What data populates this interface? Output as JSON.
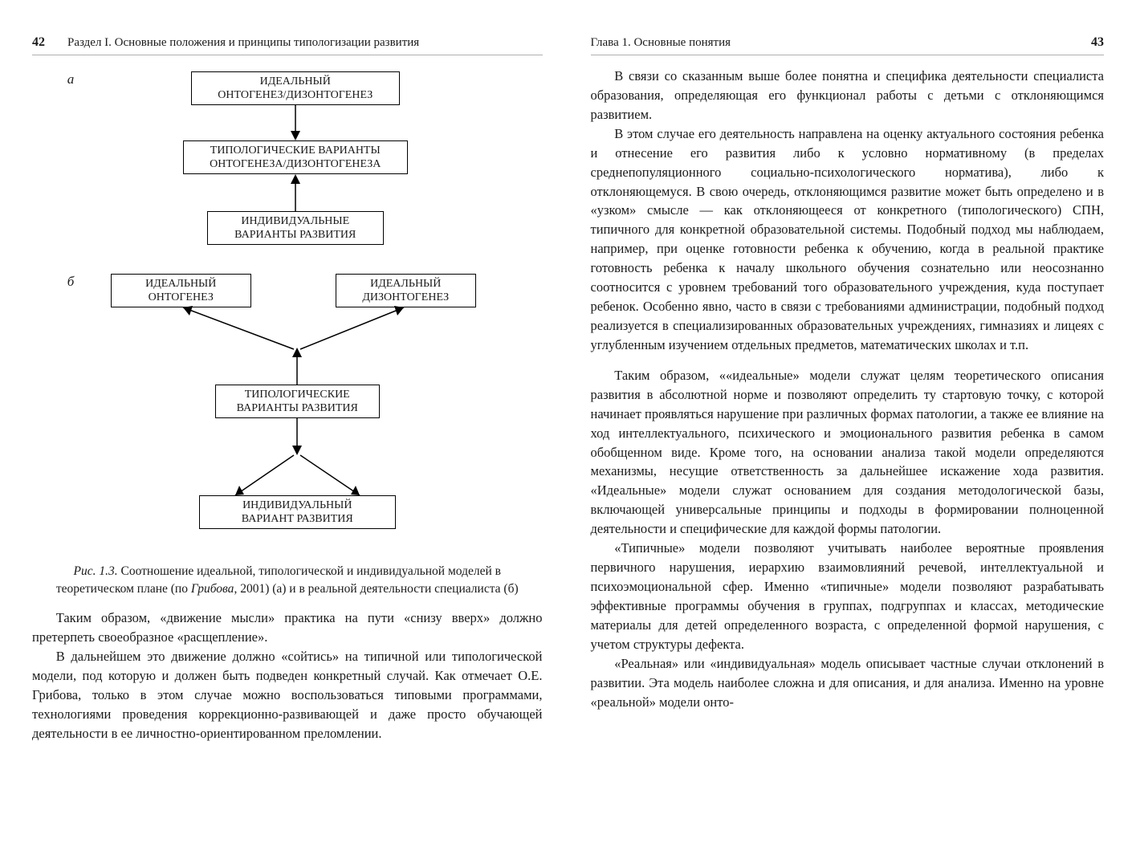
{
  "left": {
    "page_number": "42",
    "running_title": "Раздел I. Основные положения и принципы типологизации развития",
    "diagramA": {
      "label": "а",
      "box1": "ИДЕАЛЬНЫЙ\nОНТОГЕНЕЗ/ДИЗОНТОГЕНЕЗ",
      "box2": "ТИПОЛОГИЧЕСКИЕ ВАРИАНТЫ\nОНТОГЕНЕЗА/ДИЗОНТОГЕНЕЗА",
      "box3": "ИНДИВИДУАЛЬНЫЕ\nВАРИАНТЫ РАЗВИТИЯ"
    },
    "diagramB": {
      "label": "б",
      "top_left": "ИДЕАЛЬНЫЙ\nОНТОГЕНЕЗ",
      "top_right": "ИДЕАЛЬНЫЙ\nДИЗОНТОГЕНЕЗ",
      "mid": "ТИПОЛОГИЧЕСКИЕ\nВАРИАНТЫ РАЗВИТИЯ",
      "bottom": "ИНДИВИДУАЛЬНЫЙ\nВАРИАНТ РАЗВИТИЯ"
    },
    "caption_label": "Рис. 1.3.",
    "caption_body": " Соотношение идеальной, типологической и индивидуальной моделей в теоретическом плане (по ",
    "caption_src": "Грибова",
    "caption_tail": ", 2001) (а) и в реальной деятельности специалиста (б)",
    "p1": "Таким образом, «движение мысли» практика на пути «снизу вверх» должно претерпеть своеобразное «расщепление».",
    "p2": "В дальнейшем это движение должно «сойтись» на типичной или типологической модели, под которую и должен быть подведен конкретный случай. Как отмечает О.Е. Грибова, только в этом случае можно воспользоваться типовыми программами, технологиями проведения коррекционно-развивающей и даже просто обучающей деятельности в ее личностно-ориентированном преломлении."
  },
  "right": {
    "page_number": "43",
    "running_title": "Глава 1. Основные понятия",
    "p1": "В связи со сказанным выше более понятна и специфика деятельности специалиста образования, определяющая его функционал работы с детьми с отклоняющимся развитием.",
    "p2": "В этом случае его деятельность направлена на оценку актуального состояния ребенка и отнесение его развития либо к условно нормативному (в пределах среднепопуляционного социально-психологического норматива), либо к отклоняющемуся. В свою очередь, отклоняющимся развитие может быть определено и в «узком» смысле — как отклоняющееся от конкретного (типологического) СПН, типичного для конкретной образовательной системы. Подобный подход мы наблюдаем, например, при оценке готовности ребенка к обучению, когда в реальной практике готовность ребенка к началу школьного обучения сознательно или неосознанно соотносится с уровнем требований того образовательного учреждения, куда поступает ребенок. Особенно явно, часто в связи с требованиями администрации, подобный подход реализуется в специализированных образовательных учреждениях, гимназиях и лицеях с углубленным изучением отдельных предметов, математических школах и т.п.",
    "p3": "Таким образом, ««идеальные» модели служат целям теоретического описания развития в абсолютной норме и позволяют определить ту стартовую точку, с которой начинает проявляться нарушение при различных формах патологии, а также ее влияние на ход интеллектуального, психического и эмоционального развития ребенка в самом обобщенном виде. Кроме того, на основании анализа такой модели определяются механизмы, несущие ответственность за дальнейшее искажение хода развития. «Идеальные» модели служат основанием для создания методологической базы, включающей универсальные принципы и подходы в формировании полноценной деятельности и специфические для каждой формы патологии.",
    "p4": "«Типичные» модели позволяют учитывать наиболее вероятные проявления первичного нарушения, иерархию взаимовлияний речевой, интеллектуальной и психоэмоциональной сфер. Именно «типичные» модели позволяют разрабатывать эффективные программы обучения в группах, подгруппах и классах, методические материалы для детей определенного возраста, с определенной формой нарушения, с учетом структуры дефекта.",
    "p5": "«Реальная» или «индивидуальная» модель описывает частные случаи отклонений в развитии. Эта модель наиболее сложна и для описания, и для анализа. Именно на уровне «реальной» модели онто-"
  }
}
